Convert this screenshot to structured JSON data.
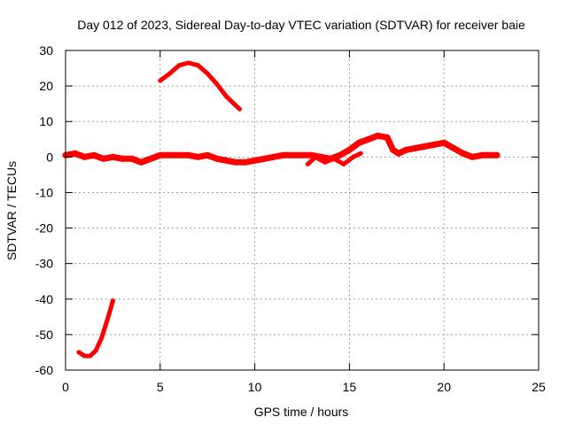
{
  "chart_data": {
    "type": "scatter",
    "title": "Day 012 of 2023, Sidereal Day-to-day VTEC variation (SDTVAR) for receiver baie",
    "xlabel": "GPS time / hours",
    "ylabel": "SDTVAR / TECUs",
    "xlim": [
      0,
      25
    ],
    "ylim": [
      -60,
      30
    ],
    "xticks": [
      0,
      5,
      10,
      15,
      20,
      25
    ],
    "yticks": [
      30,
      20,
      10,
      0,
      -10,
      -20,
      -30,
      -40,
      -50,
      -60
    ],
    "xtick_labels": [
      "0",
      "5",
      "10",
      "15",
      "20",
      "25"
    ],
    "ytick_labels": [
      "30",
      "20",
      "10",
      "0",
      "-10",
      "-20",
      "-30",
      "-40",
      "-50",
      "-60"
    ],
    "grid": true,
    "series": [
      {
        "name": "main-band",
        "color": "#ff0000",
        "x": [
          0.0,
          0.5,
          1.0,
          1.5,
          2.0,
          2.5,
          3.0,
          3.5,
          4.0,
          4.5,
          5.0,
          5.5,
          6.0,
          6.5,
          7.0,
          7.5,
          8.0,
          8.5,
          9.0,
          9.5,
          10.0,
          10.5,
          11.0,
          11.5,
          12.0,
          12.5,
          13.0,
          13.5,
          14.0,
          14.5,
          15.0,
          15.5,
          16.0,
          16.5,
          17.0,
          17.3,
          17.6,
          18.0,
          18.5,
          19.0,
          19.5,
          20.0,
          20.5,
          21.0,
          21.5,
          22.0,
          22.5,
          22.8
        ],
        "y": [
          0.5,
          1.0,
          0.0,
          0.5,
          -0.5,
          0.0,
          -0.5,
          -0.5,
          -1.5,
          -0.5,
          0.5,
          0.5,
          0.5,
          0.5,
          0.0,
          0.5,
          -0.5,
          -1.0,
          -1.5,
          -1.5,
          -1.0,
          -0.5,
          0.0,
          0.5,
          0.5,
          0.5,
          0.5,
          0.0,
          -0.5,
          0.5,
          2.0,
          4.0,
          5.0,
          6.0,
          5.5,
          2.0,
          1.0,
          2.0,
          2.5,
          3.0,
          3.5,
          4.0,
          2.5,
          1.0,
          0.0,
          0.5,
          0.5,
          0.5
        ],
        "width": 7
      },
      {
        "name": "secondary-band",
        "color": "#ff0000",
        "x": [
          12.8,
          13.2,
          13.7,
          14.2,
          14.7,
          15.2,
          15.6
        ],
        "y": [
          -2.0,
          0.0,
          -1.5,
          -0.5,
          -2.0,
          0.0,
          1.0
        ],
        "width": 5
      },
      {
        "name": "upper-arc",
        "color": "#ff0000",
        "x": [
          5.0,
          5.5,
          6.0,
          6.5,
          7.0,
          7.5,
          8.0,
          8.5,
          9.0,
          9.2
        ],
        "y": [
          21.5,
          23.5,
          25.8,
          26.5,
          25.8,
          23.5,
          20.5,
          17.0,
          14.5,
          13.5
        ],
        "width": 5
      },
      {
        "name": "lower-arc",
        "color": "#ff0000",
        "x": [
          0.7,
          1.0,
          1.3,
          1.6,
          1.9,
          2.2,
          2.5
        ],
        "y": [
          -55.0,
          -56.0,
          -56.0,
          -54.5,
          -51.0,
          -46.0,
          -40.5
        ],
        "width": 5
      }
    ]
  }
}
